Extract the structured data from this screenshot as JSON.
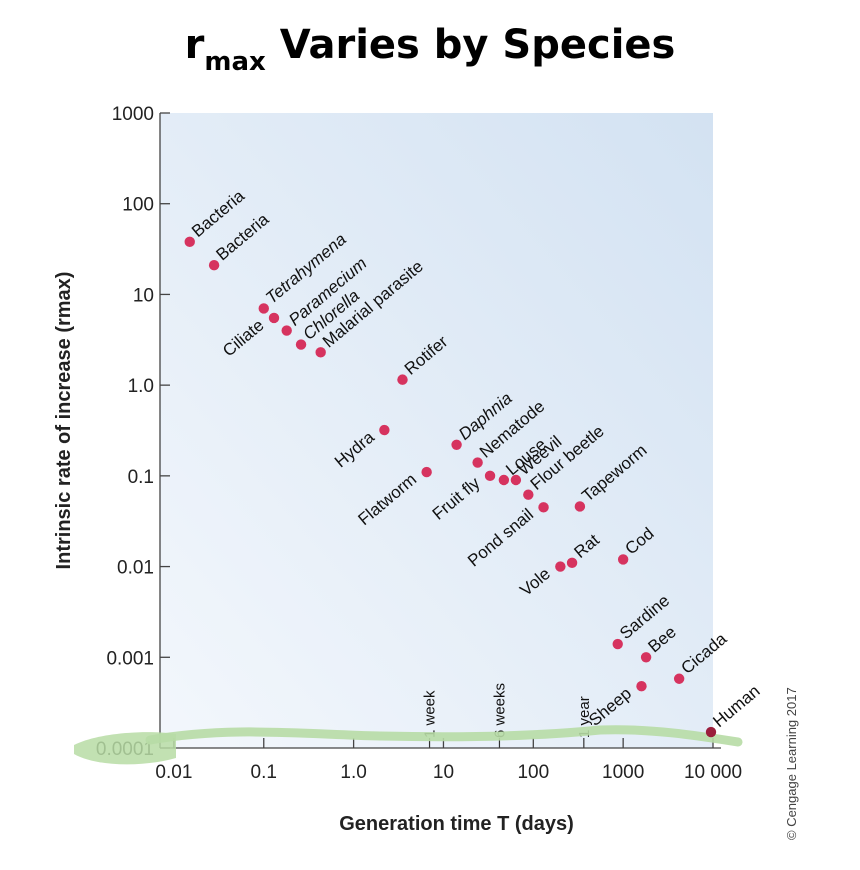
{
  "title": {
    "main": "r",
    "sub": "max",
    "rest": " Varies by Species"
  },
  "credit": "© Cengage Learning 2017",
  "chart_data": {
    "type": "scatter",
    "xlabel": "Generation time T (days)",
    "ylabel": "Intrinsic rate of increase (rmax)",
    "x_scale": "log",
    "y_scale": "log",
    "xlim": [
      0.007,
      10000
    ],
    "ylim": [
      0.0001,
      1000
    ],
    "x_ticks": [
      {
        "value": 0.01,
        "label": "0.01"
      },
      {
        "value": 0.1,
        "label": "0.1"
      },
      {
        "value": 1,
        "label": "1.0"
      },
      {
        "value": 10,
        "label": "10"
      },
      {
        "value": 100,
        "label": "100"
      },
      {
        "value": 1000,
        "label": "1000"
      },
      {
        "value": 10000,
        "label": "10 000"
      }
    ],
    "y_ticks": [
      {
        "value": 1000,
        "label": "1000"
      },
      {
        "value": 100,
        "label": "100"
      },
      {
        "value": 10,
        "label": "10"
      },
      {
        "value": 1,
        "label": "1.0"
      },
      {
        "value": 0.1,
        "label": "0.1"
      },
      {
        "value": 0.01,
        "label": "0.01"
      },
      {
        "value": 0.001,
        "label": "0.001"
      },
      {
        "value": 0.0001,
        "label": "0.0001"
      }
    ],
    "reference_lines": [
      {
        "x": 7,
        "label": "1 week"
      },
      {
        "x": 42,
        "label": "6 weeks"
      },
      {
        "x": 365,
        "label": "1 year"
      }
    ],
    "grid": false,
    "points": [
      {
        "name": "Bacteria",
        "x": 0.015,
        "y": 38
      },
      {
        "name": "Bacteria",
        "x": 0.028,
        "y": 21
      },
      {
        "name": "Tetrahymena",
        "x": 0.1,
        "y": 7
      },
      {
        "name": "Ciliate",
        "x": 0.13,
        "y": 5.5
      },
      {
        "name": "Paramecium",
        "x": 0.18,
        "y": 4
      },
      {
        "name": "Chlorella",
        "x": 0.26,
        "y": 2.8
      },
      {
        "name": "Malarial parasite",
        "x": 0.43,
        "y": 2.3
      },
      {
        "name": "Rotifer",
        "x": 3.5,
        "y": 1.15
      },
      {
        "name": "Hydra",
        "x": 2.2,
        "y": 0.32
      },
      {
        "name": "Flatworm",
        "x": 6.5,
        "y": 0.11
      },
      {
        "name": "Daphnia",
        "x": 14,
        "y": 0.22
      },
      {
        "name": "Nematode",
        "x": 24,
        "y": 0.14
      },
      {
        "name": "Fruit fly",
        "x": 33,
        "y": 0.1
      },
      {
        "name": "Louse",
        "x": 47,
        "y": 0.09
      },
      {
        "name": "Weevil",
        "x": 64,
        "y": 0.09
      },
      {
        "name": "Flour beetle",
        "x": 88,
        "y": 0.062
      },
      {
        "name": "Pond snail",
        "x": 130,
        "y": 0.045
      },
      {
        "name": "Tapeworm",
        "x": 330,
        "y": 0.046
      },
      {
        "name": "Vole",
        "x": 200,
        "y": 0.01
      },
      {
        "name": "Rat",
        "x": 270,
        "y": 0.011
      },
      {
        "name": "Cod",
        "x": 1000,
        "y": 0.012
      },
      {
        "name": "Sardine",
        "x": 870,
        "y": 0.0014
      },
      {
        "name": "Bee",
        "x": 1800,
        "y": 0.001
      },
      {
        "name": "Sheep",
        "x": 1600,
        "y": 0.00048
      },
      {
        "name": "Cicada",
        "x": 4200,
        "y": 0.00058
      },
      {
        "name": "Human",
        "x": 9500,
        "y": 0.00015
      }
    ],
    "colors": {
      "point": "#d6335f",
      "human_point": "#9b1e3c",
      "plot_bg_top": "#d3e2f2",
      "plot_bg_bottom": "#f3f7fc",
      "highlight": "#b7dca5",
      "axis": "#444444"
    }
  }
}
